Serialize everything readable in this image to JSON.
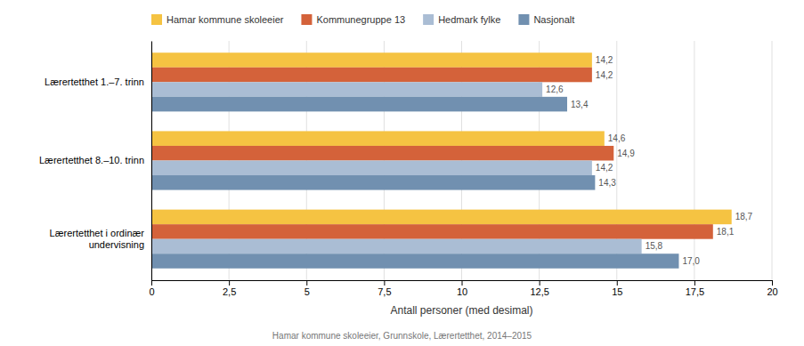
{
  "chart_data": {
    "type": "bar",
    "orientation": "horizontal",
    "categories": [
      "Lærertetthet i ordinær\nundervisning",
      "Lærertetthet 8.–10. trinn",
      "Lærertetthet 1.–7. trinn"
    ],
    "series": [
      {
        "name": "Hamar kommune skoleeier",
        "color": "#F5C342",
        "values": [
          18.7,
          14.6,
          14.2
        ],
        "value_labels": [
          "18,7",
          "14,6",
          "14,2"
        ]
      },
      {
        "name": "Kommunegruppe 13",
        "color": "#D4623A",
        "values": [
          18.1,
          14.9,
          14.2
        ],
        "value_labels": [
          "18,1",
          "14,9",
          "14,2"
        ]
      },
      {
        "name": "Hedmark fylke",
        "color": "#AABDD4",
        "values": [
          15.8,
          14.2,
          12.6
        ],
        "value_labels": [
          "15,8",
          "14,2",
          "12,6"
        ]
      },
      {
        "name": "Nasjonalt",
        "color": "#7190B0",
        "values": [
          17.0,
          14.3,
          13.4
        ],
        "value_labels": [
          "17,0",
          "14,3",
          "13,4"
        ]
      }
    ],
    "xlabel": "Antall personer (med desimal)",
    "xlim": [
      0,
      20
    ],
    "xticks": [
      0,
      {
        "value": 2.5,
        "label": "2,5"
      },
      5,
      {
        "value": 7.5,
        "label": "7,5"
      },
      10,
      {
        "value": 12.5,
        "label": "12,5"
      },
      15,
      {
        "value": 17.5,
        "label": "17,5"
      },
      20
    ],
    "grid": true,
    "legend": "top",
    "data_labels": true,
    "annotations": [
      "Hamar kommune skoleeier, Grunnskole, Lærertetthet, 2014–2015"
    ]
  }
}
